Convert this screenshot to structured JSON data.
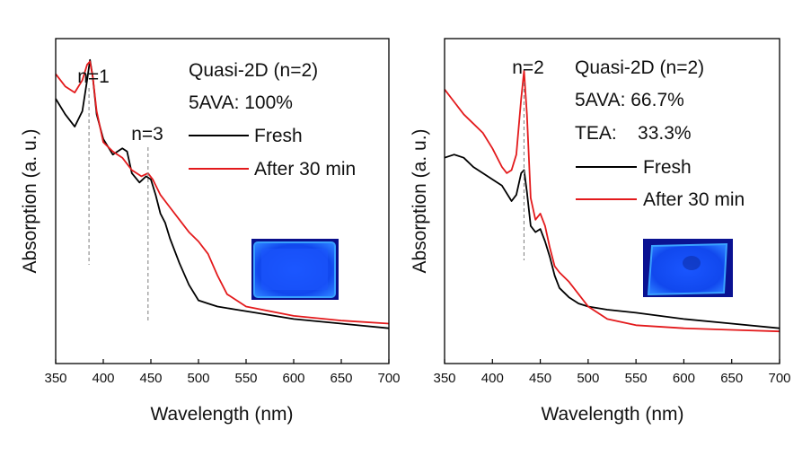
{
  "chart_data": [
    {
      "type": "line",
      "xlabel": "Wavelength (nm)",
      "ylabel": "Absorption (a. u.)",
      "xlim": [
        350,
        700
      ],
      "xticks": [
        "350",
        "400",
        "450",
        "500",
        "550",
        "600",
        "650",
        "700"
      ],
      "ylim": [
        0,
        1
      ],
      "legend": {
        "placement": "top-right",
        "header": [
          "Quasi-2D (n=2)",
          "5AVA: 100%"
        ],
        "entries": [
          "Fresh",
          "After 30 min"
        ]
      },
      "markers": [
        {
          "label": "n=1",
          "x": 385
        },
        {
          "label": "n=3",
          "x": 447
        }
      ],
      "inset": "blue-glowing-film-photo",
      "series": [
        {
          "name": "Fresh",
          "color": "#000000",
          "x": [
            350,
            360,
            370,
            378,
            383,
            386,
            389,
            393,
            400,
            410,
            420,
            425,
            430,
            438,
            445,
            450,
            455,
            460,
            465,
            470,
            480,
            490,
            500,
            510,
            520,
            540,
            560,
            600,
            650,
            700
          ],
          "y": [
            0.79,
            0.74,
            0.7,
            0.75,
            0.85,
            0.915,
            0.86,
            0.74,
            0.66,
            0.61,
            0.63,
            0.62,
            0.55,
            0.52,
            0.54,
            0.53,
            0.48,
            0.42,
            0.39,
            0.34,
            0.26,
            0.19,
            0.14,
            0.13,
            0.12,
            0.11,
            0.1,
            0.08,
            0.065,
            0.05
          ]
        },
        {
          "name": "After 30 min",
          "color": "#e31a1c",
          "x": [
            350,
            360,
            370,
            378,
            383,
            386,
            389,
            393,
            400,
            410,
            420,
            430,
            440,
            447,
            452,
            460,
            470,
            480,
            490,
            500,
            510,
            520,
            530,
            550,
            600,
            650,
            700
          ],
          "y": [
            0.87,
            0.83,
            0.81,
            0.85,
            0.9,
            0.91,
            0.86,
            0.75,
            0.65,
            0.62,
            0.6,
            0.56,
            0.54,
            0.55,
            0.53,
            0.48,
            0.44,
            0.4,
            0.36,
            0.33,
            0.29,
            0.22,
            0.16,
            0.12,
            0.09,
            0.075,
            0.065
          ]
        }
      ]
    },
    {
      "type": "line",
      "xlabel": "Wavelength (nm)",
      "ylabel": "Absorption (a. u.)",
      "xlim": [
        350,
        700
      ],
      "xticks": [
        "350",
        "400",
        "450",
        "500",
        "550",
        "600",
        "650",
        "700"
      ],
      "ylim": [
        0,
        1
      ],
      "legend": {
        "placement": "top-right",
        "header": [
          "Quasi-2D (n=2)",
          "5AVA: 66.7%",
          "TEA:    33.3%"
        ],
        "entries": [
          "Fresh",
          "After 30 min"
        ]
      },
      "markers": [
        {
          "label": "n=2",
          "x": 433
        }
      ],
      "inset": "blue-glowing-film-photo",
      "series": [
        {
          "name": "Fresh",
          "color": "#000000",
          "x": [
            350,
            360,
            370,
            380,
            390,
            400,
            410,
            420,
            425,
            430,
            433,
            436,
            440,
            445,
            450,
            455,
            460,
            465,
            470,
            480,
            490,
            500,
            520,
            550,
            600,
            650,
            700
          ],
          "y": [
            0.6,
            0.61,
            0.6,
            0.57,
            0.55,
            0.53,
            0.51,
            0.46,
            0.48,
            0.55,
            0.56,
            0.49,
            0.38,
            0.36,
            0.37,
            0.33,
            0.28,
            0.22,
            0.18,
            0.15,
            0.13,
            0.12,
            0.11,
            0.1,
            0.08,
            0.065,
            0.05
          ]
        },
        {
          "name": "After 30 min",
          "color": "#e31a1c",
          "x": [
            350,
            360,
            370,
            380,
            390,
            400,
            410,
            415,
            420,
            425,
            430,
            433,
            436,
            440,
            445,
            450,
            455,
            460,
            465,
            470,
            480,
            490,
            500,
            510,
            520,
            550,
            600,
            650,
            700
          ],
          "y": [
            0.82,
            0.78,
            0.74,
            0.71,
            0.68,
            0.63,
            0.57,
            0.55,
            0.56,
            0.61,
            0.79,
            0.88,
            0.74,
            0.47,
            0.4,
            0.42,
            0.38,
            0.31,
            0.25,
            0.23,
            0.2,
            0.16,
            0.12,
            0.1,
            0.08,
            0.06,
            0.05,
            0.045,
            0.04
          ]
        }
      ]
    }
  ]
}
